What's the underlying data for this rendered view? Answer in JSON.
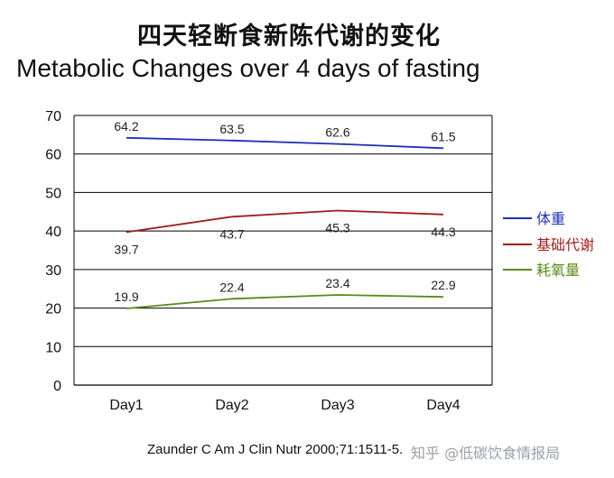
{
  "chart_data": {
    "type": "line",
    "title": "四天轻断食新陈代谢的变化",
    "subtitle": "Metabolic Changes over 4 days of fasting",
    "categories": [
      "Day1",
      "Day2",
      "Day3",
      "Day4"
    ],
    "ylim": [
      0,
      70
    ],
    "yticks": [
      0,
      10,
      20,
      30,
      40,
      50,
      60,
      70
    ],
    "grid": true,
    "legend_position": "right",
    "series": [
      {
        "name": "体重",
        "color": "#1f2fb8",
        "values": [
          64.2,
          63.5,
          62.6,
          61.5
        ],
        "labels": [
          "64.2",
          "63.5",
          "62.6",
          "61.5"
        ]
      },
      {
        "name": "基础代谢",
        "color": "#a01c1c",
        "values": [
          39.7,
          43.7,
          45.3,
          44.3
        ],
        "labels": [
          "39.7",
          "43.7",
          "45.3",
          "44.3"
        ]
      },
      {
        "name": "耗氧量",
        "color": "#5a8a1a",
        "values": [
          19.9,
          22.4,
          23.4,
          22.9
        ],
        "labels": [
          "19.9",
          "22.4",
          "23.4",
          "22.9"
        ]
      }
    ]
  },
  "citation": "Zaunder C Am J Clin Nutr 2000;71:1511-5.",
  "watermark": "知乎 @低碳饮食情报局"
}
